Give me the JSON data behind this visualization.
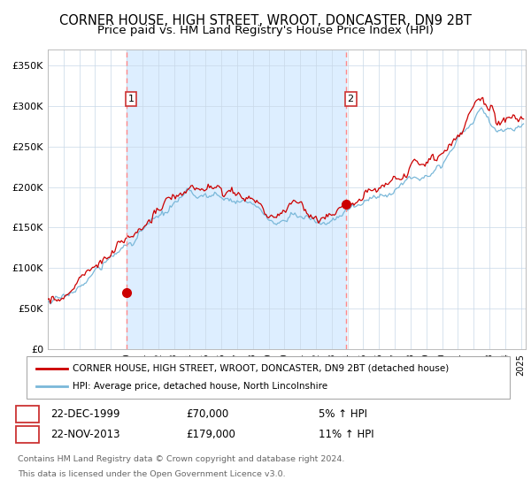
{
  "title": "CORNER HOUSE, HIGH STREET, WROOT, DONCASTER, DN9 2BT",
  "subtitle": "Price paid vs. HM Land Registry's House Price Index (HPI)",
  "title_fontsize": 10.5,
  "subtitle_fontsize": 9.5,
  "ylabel_ticks": [
    "£0",
    "£50K",
    "£100K",
    "£150K",
    "£200K",
    "£250K",
    "£300K",
    "£350K"
  ],
  "ylabel_values": [
    0,
    50000,
    100000,
    150000,
    200000,
    250000,
    300000,
    350000
  ],
  "ylim": [
    0,
    370000
  ],
  "year_start": 1995,
  "year_end": 2025,
  "sale1_year": 1999.97,
  "sale1_price": 70000,
  "sale1_label": "1",
  "sale1_date": "22-DEC-1999",
  "sale1_hpi": "5% ↑ HPI",
  "sale2_year": 2013.9,
  "sale2_price": 179000,
  "sale2_label": "2",
  "sale2_date": "22-NOV-2013",
  "sale2_hpi": "11% ↑ HPI",
  "hpi_color": "#7ab8d9",
  "price_color": "#cc0000",
  "dot_color": "#cc0000",
  "dashed_color": "#ff8888",
  "bg_between_color": "#ddeeff",
  "legend_house": "CORNER HOUSE, HIGH STREET, WROOT, DONCASTER, DN9 2BT (detached house)",
  "legend_hpi": "HPI: Average price, detached house, North Lincolnshire",
  "footer1": "Contains HM Land Registry data © Crown copyright and database right 2024.",
  "footer2": "This data is licensed under the Open Government Licence v3.0."
}
